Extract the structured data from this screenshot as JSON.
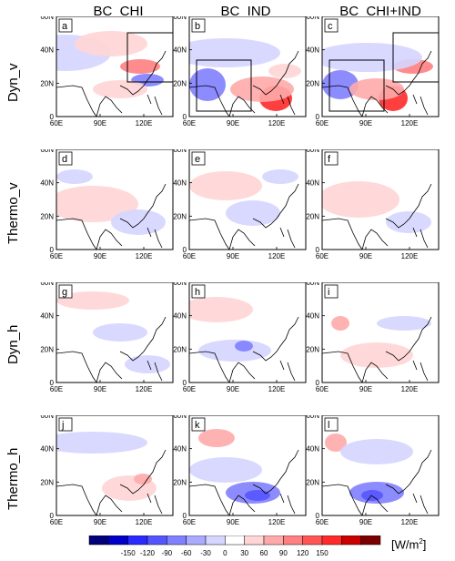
{
  "columns": [
    "BC_CHI",
    "BC_IND",
    "BC_CHI+IND"
  ],
  "rows": [
    "Dyn_v",
    "Thermo_v",
    "Dyn_h",
    "Thermo_h"
  ],
  "panel_letters": [
    "a",
    "b",
    "c",
    "d",
    "e",
    "f",
    "g",
    "h",
    "i",
    "j",
    "k",
    "l"
  ],
  "x_ticks": [
    "60E",
    "90E",
    "120E"
  ],
  "y_ticks": [
    "0",
    "20N",
    "40N",
    "60N"
  ],
  "colorbar": {
    "ticks": [
      "-150",
      "-120",
      "-90",
      "-60",
      "-30",
      "0",
      "30",
      "60",
      "90",
      "120",
      "150"
    ],
    "colors": [
      "#00007a",
      "#0000c8",
      "#2a2aff",
      "#5555ff",
      "#8080ff",
      "#aaaaff",
      "#d5d5ff",
      "#ffffff",
      "#ffd5d5",
      "#ffaaaa",
      "#ff8080",
      "#ff5555",
      "#ff2a2a",
      "#c80000",
      "#7a0000"
    ],
    "units_text": "[W/m",
    "units_sup": "2",
    "units_close": "]"
  }
}
